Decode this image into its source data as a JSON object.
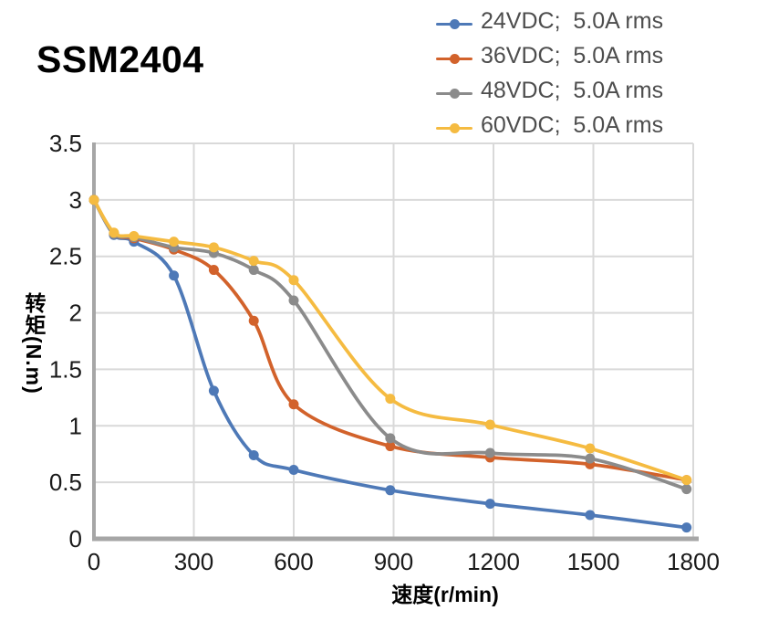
{
  "chart_data": {
    "type": "line",
    "title": "SSM2404",
    "xlabel": "速度(r/min)",
    "ylabel": "转矩(N.m)",
    "xlim": [
      0,
      1800
    ],
    "ylim": [
      0,
      3.5
    ],
    "xticks": [
      0,
      300,
      600,
      900,
      1200,
      1500,
      1800
    ],
    "xtick_labels": [
      "0",
      "300",
      "600",
      "900",
      "1200",
      "1500",
      "1800"
    ],
    "yticks": [
      0,
      0.5,
      1,
      1.5,
      2,
      2.5,
      3,
      3.5
    ],
    "ytick_labels": [
      "0",
      "0.5",
      "1",
      "1.5",
      "2",
      "2.5",
      "3",
      "3.5"
    ],
    "grid": true,
    "legend_position": "top-right",
    "x": [
      0,
      60,
      120,
      240,
      360,
      480,
      600,
      890,
      1190,
      1490,
      1780
    ],
    "series": [
      {
        "name": "24VDC;  5.0A rms",
        "color": "#4E79B7",
        "values": [
          3.0,
          2.69,
          2.63,
          2.33,
          1.31,
          0.74,
          0.61,
          0.43,
          0.31,
          0.21,
          0.1
        ]
      },
      {
        "name": "36VDC;  5.0A rms",
        "color": "#D2622B",
        "values": [
          3.0,
          2.7,
          2.66,
          2.56,
          2.38,
          1.93,
          1.19,
          0.82,
          0.72,
          0.66,
          0.52
        ]
      },
      {
        "name": "48VDC;  5.0A rms",
        "color": "#8B8B8B",
        "values": [
          3.0,
          2.7,
          2.67,
          2.58,
          2.53,
          2.38,
          2.11,
          0.89,
          0.76,
          0.71,
          0.44
        ]
      },
      {
        "name": "60VDC;  5.0A rms",
        "color": "#F5BB41",
        "values": [
          3.0,
          2.71,
          2.68,
          2.63,
          2.58,
          2.46,
          2.29,
          1.24,
          1.01,
          0.8,
          0.52
        ]
      }
    ],
    "styles": {
      "grid_color": "#D9D9D9",
      "axis_color": "#A6A6A6",
      "tick_color": "#1A1A1A",
      "legend_text_color": "#4D4D4D",
      "title_color": "#000000"
    }
  }
}
